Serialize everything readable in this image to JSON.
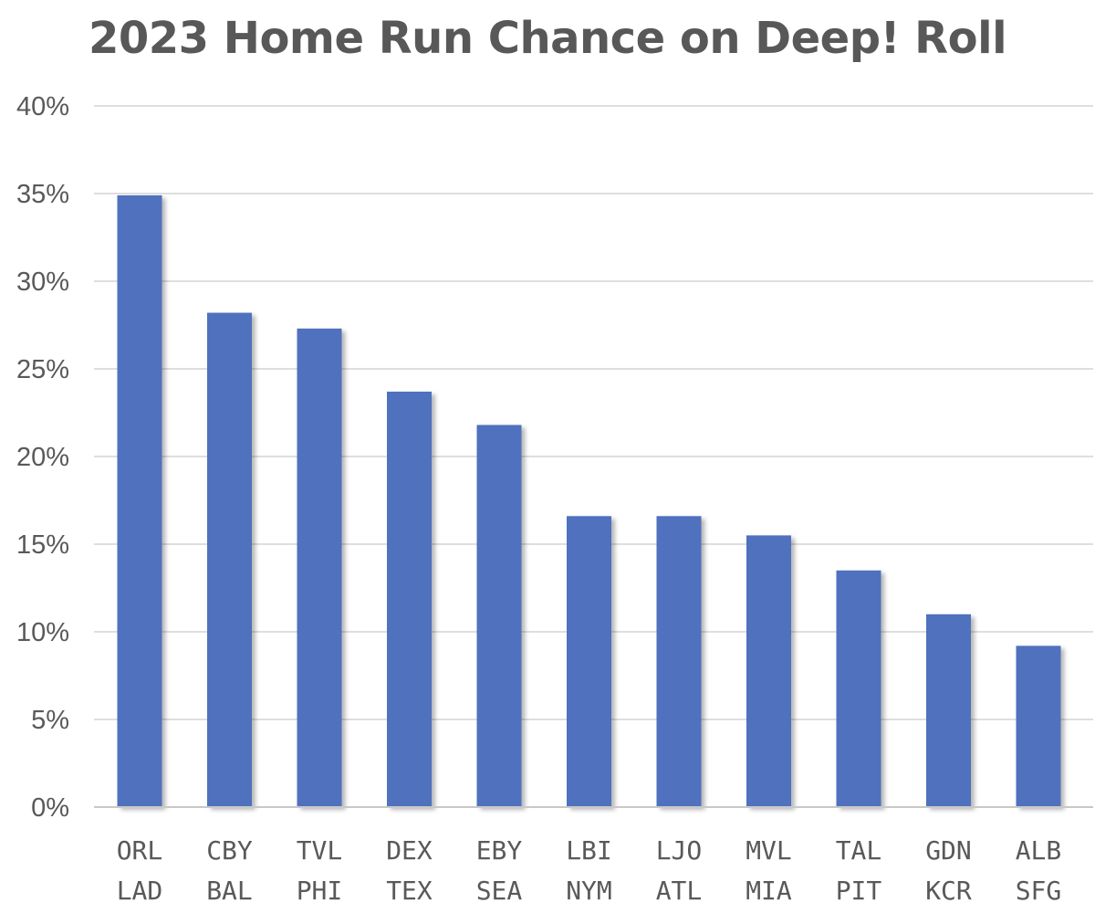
{
  "chart_data": {
    "type": "bar",
    "title": "2023 Home Run Chance on Deep! Roll",
    "xlabel": "",
    "ylabel": "",
    "ylim": [
      0,
      40
    ],
    "yticks": [
      "0%",
      "5%",
      "10%",
      "15%",
      "20%",
      "25%",
      "30%",
      "35%",
      "40%"
    ],
    "grid": true,
    "legend": "none",
    "bar_color": "#4f71be",
    "categories": [
      [
        "ORL",
        "LAD"
      ],
      [
        "CBY",
        "BAL"
      ],
      [
        "TVL",
        "PHI"
      ],
      [
        "DEX",
        "TEX"
      ],
      [
        "EBY",
        "SEA"
      ],
      [
        "LBI",
        "NYM"
      ],
      [
        "LJO",
        "ATL"
      ],
      [
        "MVL",
        "MIA"
      ],
      [
        "TAL",
        "PIT"
      ],
      [
        "GDN",
        "KCR"
      ],
      [
        "ALB",
        "SFG"
      ]
    ],
    "values": [
      34.9,
      28.2,
      27.3,
      23.7,
      21.8,
      16.6,
      16.6,
      15.5,
      13.5,
      11.0,
      9.2
    ]
  }
}
